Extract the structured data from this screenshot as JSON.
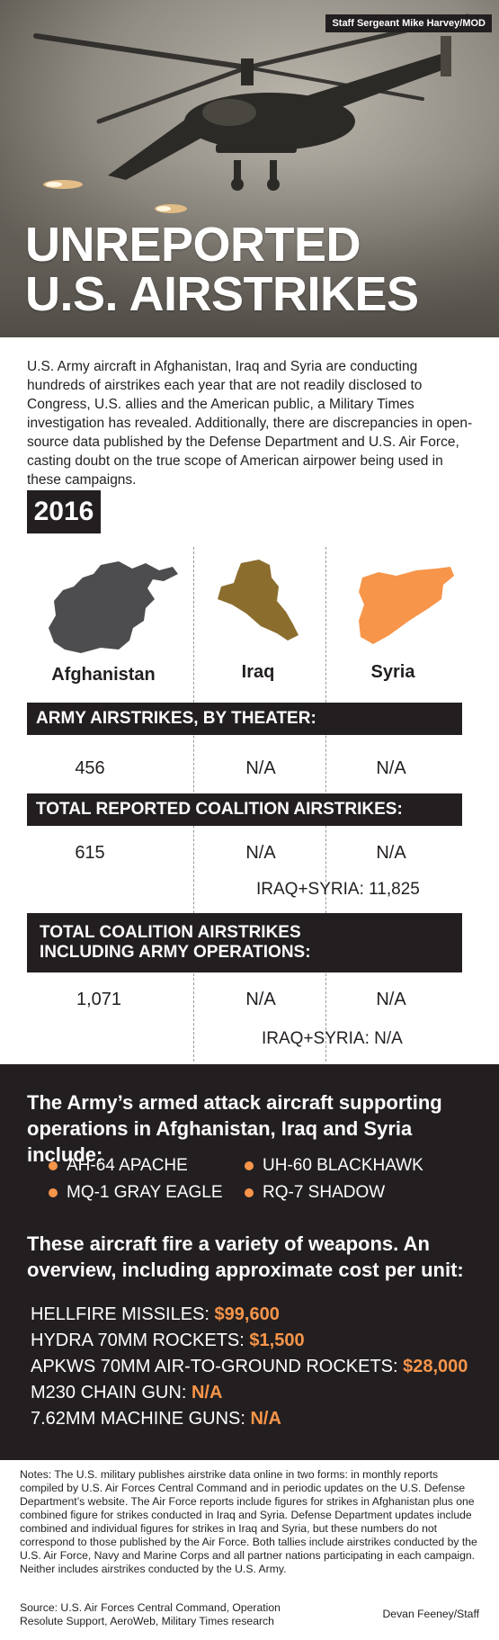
{
  "hero": {
    "credit": "Staff Sergeant Mike Harvey/MOD",
    "title_line1": "UNREPORTED",
    "title_line2": "U.S. AIRSTRIKES"
  },
  "intro": "U.S. Army aircraft in Afghanistan, Iraq and Syria are conducting hundreds of airstrikes each year that are not readily disclosed to Congress, U.S. allies and the American public, a Military Times investigation has revealed. Additionally, there are discrepancies in open-source data published by the Defense Department and U.S. Air Force, casting doubt on the true scope of American airpower being used in these campaigns.",
  "year": "2016",
  "countries": [
    {
      "name": "Afghanistan",
      "color": "#4d4d4f"
    },
    {
      "name": "Iraq",
      "color": "#8b6d2e"
    },
    {
      "name": "Syria",
      "color": "#f7954a"
    }
  ],
  "sections": {
    "army": {
      "title": "ARMY AIRSTRIKES, BY THEATER:",
      "values": [
        "456",
        "N/A",
        "N/A"
      ]
    },
    "reported": {
      "title": "TOTAL REPORTED COALITION AIRSTRIKES:",
      "values": [
        "615",
        "N/A",
        "N/A"
      ],
      "combined": "IRAQ+SYRIA: 11,825"
    },
    "total": {
      "title_line1": "TOTAL COALITION AIRSTRIKES",
      "title_line2": "INCLUDING ARMY OPERATIONS:",
      "values": [
        "1,071",
        "N/A",
        "N/A"
      ],
      "combined": "IRAQ+SYRIA: N/A"
    }
  },
  "aircraft_section": {
    "heading_line1": "The Army’s armed attack aircraft supporting",
    "heading_line2": "operations in Afghanistan, Iraq and Syria include:",
    "items": [
      "AH-64 APACHE",
      "UH-60 BLACKHAWK",
      "MQ-1 GRAY EAGLE",
      "RQ-7 SHADOW"
    ]
  },
  "weapons_section": {
    "heading_line1": "These aircraft fire a variety of weapons. An",
    "heading_line2": "overview, including approximate cost per unit:",
    "items": [
      {
        "name": "HELLFIRE MISSILES: ",
        "cost": "$99,600"
      },
      {
        "name": "HYDRA 70MM ROCKETS: ",
        "cost": "$1,500"
      },
      {
        "name": "APKWS 70MM AIR-TO-GROUND ROCKETS: ",
        "cost": "$28,000"
      },
      {
        "name": "M230 CHAIN GUN: ",
        "cost": "N/A"
      },
      {
        "name": "7.62MM MACHINE GUNS: ",
        "cost": "N/A"
      }
    ]
  },
  "notes": "Notes: The U.S. military publishes airstrike data online in two forms: in monthly reports compiled by U.S. Air Forces Central Command and in periodic updates on the U.S. Defense Department’s website. The Air Force reports include figures for strikes in Afghanistan plus one combined figure for strikes conducted in Iraq and Syria. Defense Department updates include combined and individual figures for strikes in Iraq and Syria, but these numbers do not correspond to those published by the Air Force. Both tallies include airstrikes conducted by the U.S. Air Force, Navy and Marine Corps and all partner nations participating in each campaign. Neither includes airstrikes conducted by the U.S. Army.",
  "source": "Source: U.S. Air Forces Central Command, Operation Resolute Support, AeroWeb, Military Times research",
  "byline": "Devan Feeney/Staff"
}
